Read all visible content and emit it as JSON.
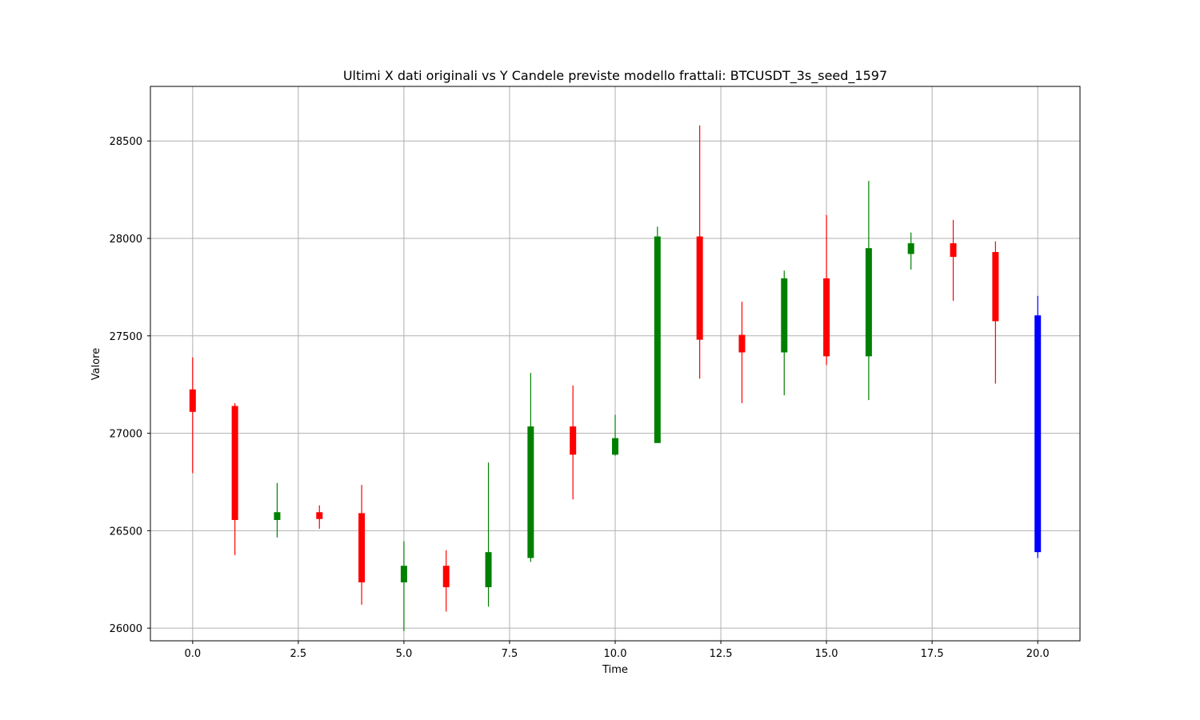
{
  "chart_data": {
    "type": "candlestick",
    "title": "Ultimi X dati originali vs Y Candele previste modello frattali: BTCUSDT_3s_seed_1597",
    "xlabel": "Time",
    "ylabel": "Valore",
    "xlim": [
      -1,
      21
    ],
    "ylim": [
      25935,
      28780
    ],
    "grid": true,
    "x_ticks": [
      0,
      2.5,
      5,
      7.5,
      10,
      12.5,
      15,
      17.5,
      20
    ],
    "x_tick_labels": [
      "0.0",
      "2.5",
      "5.0",
      "7.5",
      "10.0",
      "12.5",
      "15.0",
      "17.5",
      "20.0"
    ],
    "y_ticks": [
      26000,
      26500,
      27000,
      27500,
      28000,
      28500
    ],
    "y_tick_labels": [
      "26000",
      "26500",
      "27000",
      "27500",
      "28000",
      "28500"
    ],
    "colors": {
      "up": "#008000",
      "down": "#ff0000",
      "forecast": "#0000ff"
    },
    "candles": [
      {
        "x": 0,
        "open": 27225,
        "high": 27390,
        "low": 26795,
        "close": 27110,
        "kind": "down"
      },
      {
        "x": 1,
        "open": 27140,
        "high": 27155,
        "low": 26375,
        "close": 26555,
        "kind": "down"
      },
      {
        "x": 2,
        "open": 26555,
        "high": 26745,
        "low": 26465,
        "close": 26595,
        "kind": "up"
      },
      {
        "x": 3,
        "open": 26595,
        "high": 26630,
        "low": 26510,
        "close": 26560,
        "kind": "down"
      },
      {
        "x": 4,
        "open": 26590,
        "high": 26735,
        "low": 26120,
        "close": 26235,
        "kind": "down"
      },
      {
        "x": 5,
        "open": 26235,
        "high": 26445,
        "low": 25985,
        "close": 26320,
        "kind": "up"
      },
      {
        "x": 6,
        "open": 26320,
        "high": 26400,
        "low": 26085,
        "close": 26210,
        "kind": "down"
      },
      {
        "x": 7,
        "open": 26210,
        "high": 26850,
        "low": 26110,
        "close": 26390,
        "kind": "up"
      },
      {
        "x": 8,
        "open": 26360,
        "high": 27310,
        "low": 26340,
        "close": 27035,
        "kind": "up"
      },
      {
        "x": 9,
        "open": 27035,
        "high": 27245,
        "low": 26660,
        "close": 26890,
        "kind": "down"
      },
      {
        "x": 10,
        "open": 26890,
        "high": 27095,
        "low": 26885,
        "close": 26975,
        "kind": "up"
      },
      {
        "x": 11,
        "open": 26950,
        "high": 28060,
        "low": 26950,
        "close": 28010,
        "kind": "up"
      },
      {
        "x": 12,
        "open": 28010,
        "high": 28580,
        "low": 27280,
        "close": 27480,
        "kind": "down"
      },
      {
        "x": 13,
        "open": 27505,
        "high": 27675,
        "low": 27155,
        "close": 27415,
        "kind": "down"
      },
      {
        "x": 14,
        "open": 27415,
        "high": 27835,
        "low": 27195,
        "close": 27795,
        "kind": "up"
      },
      {
        "x": 15,
        "open": 27795,
        "high": 28120,
        "low": 27350,
        "close": 27395,
        "kind": "down"
      },
      {
        "x": 16,
        "open": 27395,
        "high": 28295,
        "low": 27170,
        "close": 27950,
        "kind": "up"
      },
      {
        "x": 17,
        "open": 27920,
        "high": 28030,
        "low": 27840,
        "close": 27975,
        "kind": "up"
      },
      {
        "x": 18,
        "open": 27975,
        "high": 28095,
        "low": 27680,
        "close": 27905,
        "kind": "down"
      },
      {
        "x": 19,
        "open": 27930,
        "high": 27985,
        "low": 27255,
        "close": 27575,
        "kind": "down"
      },
      {
        "x": 20,
        "open": 27605,
        "high": 27705,
        "low": 26360,
        "close": 26390,
        "kind": "forecast"
      }
    ]
  }
}
